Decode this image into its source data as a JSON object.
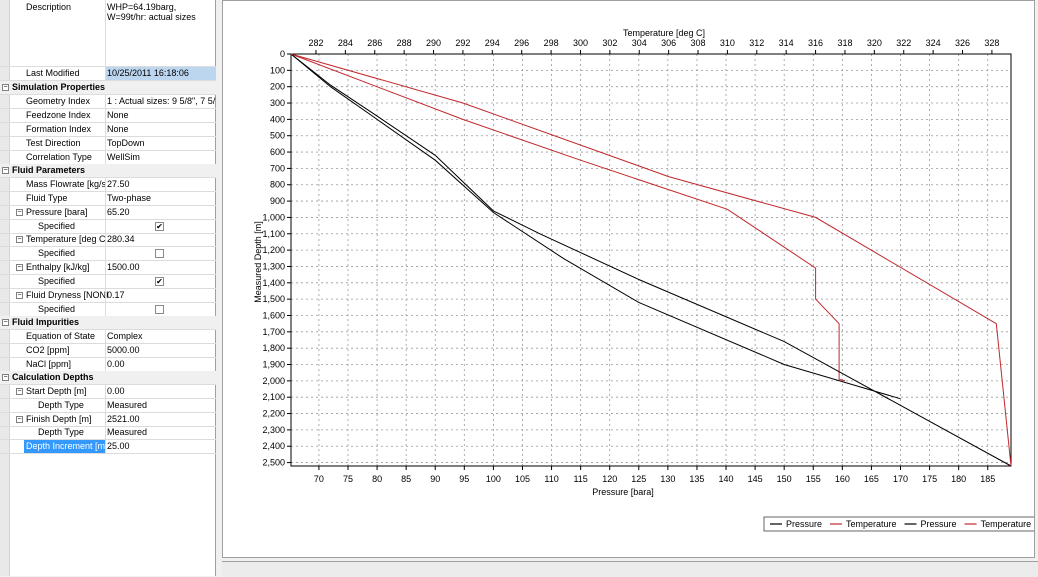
{
  "properties": {
    "description": {
      "label": "Description",
      "value_lines": [
        "WHP=64.19barg,",
        "W=99t/hr: actual sizes"
      ]
    },
    "last_modified": {
      "label": "Last Modified",
      "value": "10/25/2011 16:18:06"
    },
    "cat_sim": "Simulation Properties",
    "geometry_index": {
      "label": "Geometry Index",
      "value": "1 : Actual sizes: 9 5/8\", 7 5/"
    },
    "feedzone_index": {
      "label": "Feedzone Index",
      "value": "None"
    },
    "formation_index": {
      "label": "Formation Index",
      "value": "None"
    },
    "test_direction": {
      "label": "Test Direction",
      "value": "TopDown"
    },
    "correlation_type": {
      "label": "Correlation Type",
      "value": "WellSim"
    },
    "cat_fluid": "Fluid Parameters",
    "mass_flowrate": {
      "label": "Mass Flowrate [kg/s",
      "value": "27.50"
    },
    "fluid_type": {
      "label": "Fluid Type",
      "value": "Two-phase"
    },
    "pressure": {
      "label": "Pressure [bara]",
      "value": "65.20"
    },
    "pressure_specified": {
      "label": "Specified",
      "checked": true
    },
    "temperature": {
      "label": "Temperature [deg C",
      "value": "280.34"
    },
    "temperature_specified": {
      "label": "Specified",
      "checked": false
    },
    "enthalpy": {
      "label": "Enthalpy [kJ/kg]",
      "value": "1500.00"
    },
    "enthalpy_specified": {
      "label": "Specified",
      "checked": true
    },
    "fluid_dryness": {
      "label": "Fluid Dryness [NONI",
      "value": "0.17"
    },
    "dryness_specified": {
      "label": "Specified",
      "checked": false
    },
    "cat_impurities": "Fluid Impurities",
    "equation_of_state": {
      "label": "Equation of State",
      "value": "Complex"
    },
    "co2": {
      "label": "CO2 [ppm]",
      "value": "5000.00"
    },
    "nacl": {
      "label": "NaCl [ppm]",
      "value": "0.00"
    },
    "cat_depths": "Calculation Depths",
    "start_depth": {
      "label": "Start Depth [m]",
      "value": "0.00"
    },
    "start_depth_type": {
      "label": "Depth Type",
      "value": "Measured"
    },
    "finish_depth": {
      "label": "Finish Depth [m]",
      "value": "2521.00"
    },
    "finish_depth_type": {
      "label": "Depth Type",
      "value": "Measured"
    },
    "depth_increment": {
      "label": "Depth Increment [m",
      "value": "25.00"
    }
  },
  "colors": {
    "pressure": "#000000",
    "temperature": "#c0282d",
    "selection": "#3399ff"
  },
  "icons": {
    "collapse": "minus-box-icon",
    "check": "check-mark-icon"
  },
  "chart_data": {
    "type": "line",
    "x_top_label": "Temperature [deg C]",
    "x_bottom_label": "Pressure [bara]",
    "ylabel": "Measured Depth [m]",
    "x_top_ticks": [
      "282",
      "284",
      "286",
      "288",
      "290",
      "292",
      "294",
      "296",
      "298",
      "300",
      "302",
      "304",
      "306",
      "308",
      "310",
      "312",
      "314",
      "316",
      "318",
      "320",
      "322",
      "324",
      "326",
      "328"
    ],
    "x_bottom_ticks": [
      "70",
      "75",
      "80",
      "85",
      "90",
      "95",
      "100",
      "105",
      "110",
      "115",
      "120",
      "125",
      "130",
      "135",
      "140",
      "145",
      "150",
      "155",
      "160",
      "165",
      "170",
      "175",
      "180",
      "185"
    ],
    "y_ticks": [
      "0",
      "100",
      "200",
      "300",
      "400",
      "500",
      "600",
      "700",
      "800",
      "900",
      "1,000",
      "1,100",
      "1,200",
      "1,300",
      "1,400",
      "1,500",
      "1,600",
      "1,700",
      "1,800",
      "1,900",
      "2,000",
      "2,100",
      "2,200",
      "2,300",
      "2,400",
      "2,500"
    ],
    "xlim_bottom": [
      65.2,
      189
    ],
    "xlim_top": [
      280.3,
      329.3
    ],
    "ylim": [
      0,
      2521
    ],
    "grid": true,
    "legend_position": "bottom",
    "series": [
      {
        "name": "Pressure",
        "axis": "bottom",
        "color": "#000000",
        "points": [
          [
            65.2,
            0
          ],
          [
            72,
            200
          ],
          [
            80,
            400
          ],
          [
            90,
            650
          ],
          [
            100,
            970
          ],
          [
            112,
            1250
          ],
          [
            125,
            1520
          ],
          [
            150,
            1900
          ],
          [
            170,
            2110
          ]
        ]
      },
      {
        "name": "Temperature",
        "axis": "top",
        "color": "#c0282d",
        "points": [
          [
            280.3,
            0
          ],
          [
            292,
            400
          ],
          [
            300,
            650
          ],
          [
            310,
            950
          ],
          [
            316,
            1310
          ],
          [
            316,
            1500
          ],
          [
            317.6,
            1650
          ],
          [
            317.6,
            1990
          ],
          [
            318,
            2000
          ]
        ]
      },
      {
        "name": "Pressure",
        "axis": "bottom",
        "color": "#000000",
        "points": [
          [
            65.2,
            0
          ],
          [
            72,
            190
          ],
          [
            80,
            380
          ],
          [
            90,
            620
          ],
          [
            100,
            960
          ],
          [
            108,
            1100
          ],
          [
            125,
            1380
          ],
          [
            150,
            1760
          ],
          [
            189,
            2521
          ]
        ]
      },
      {
        "name": "Temperature",
        "axis": "top",
        "color": "#c0282d",
        "points": [
          [
            280.3,
            0
          ],
          [
            292,
            300
          ],
          [
            306,
            750
          ],
          [
            316,
            1000
          ],
          [
            328.3,
            1650
          ],
          [
            329.3,
            2521
          ]
        ]
      }
    ]
  }
}
